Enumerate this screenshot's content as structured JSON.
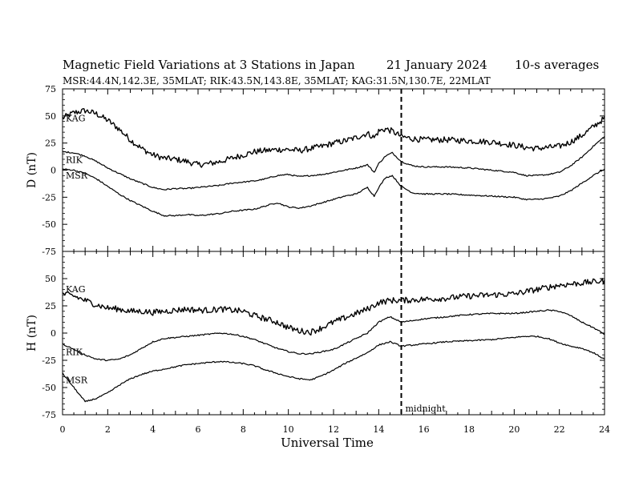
{
  "header": {
    "title": "Magnetic Field Variations at 3 Stations in Japan",
    "date": "21 January 2024",
    "averaging": "10-s averages",
    "stations": "MSR:44.4N,142.3E, 35MLAT;  RIK:43.5N,143.8E, 35MLAT;  KAG:31.5N,130.7E, 22MLAT"
  },
  "chart_data": [
    {
      "type": "line",
      "panel": "D",
      "ylabel": "D (nT)",
      "xlabel": "Universal Time",
      "xlim": [
        0,
        24
      ],
      "ylim": [
        -75,
        75
      ],
      "yticks": [
        75,
        50,
        25,
        0,
        -25,
        -50,
        -75
      ],
      "xticks": [
        0,
        2,
        4,
        6,
        8,
        10,
        12,
        14,
        16,
        18,
        20,
        22,
        24
      ],
      "x": [
        0,
        0.5,
        1,
        1.5,
        2,
        2.5,
        3,
        3.5,
        4,
        4.5,
        5,
        5.5,
        6,
        6.5,
        7,
        7.5,
        8,
        8.5,
        9,
        9.5,
        10,
        10.5,
        11,
        11.5,
        12,
        12.5,
        13,
        13.5,
        13.8,
        14,
        14.3,
        14.6,
        15,
        15.5,
        16,
        17,
        18,
        19,
        20,
        20.5,
        21,
        21.5,
        22,
        22.5,
        23,
        23.5,
        24
      ],
      "series": [
        {
          "name": "KAG",
          "values": [
            48,
            53,
            55,
            52,
            46,
            38,
            28,
            20,
            14,
            11,
            10,
            8,
            5,
            6,
            8,
            11,
            14,
            17,
            18,
            19,
            19,
            18,
            20,
            22,
            25,
            27,
            30,
            34,
            30,
            36,
            38,
            36,
            31,
            29,
            28,
            28,
            27,
            26,
            23,
            21,
            20,
            21,
            22,
            26,
            32,
            40,
            48
          ]
        },
        {
          "name": "RIK",
          "values": [
            17,
            16,
            13,
            8,
            2,
            -3,
            -8,
            -12,
            -16,
            -18,
            -17,
            -17,
            -16,
            -15,
            -14,
            -12,
            -11,
            -10,
            -8,
            -5,
            -4,
            -6,
            -5,
            -4,
            -2,
            0,
            2,
            5,
            -2,
            6,
            13,
            16,
            8,
            4,
            3,
            3,
            2,
            0,
            -2,
            -5,
            -5,
            -4,
            -2,
            4,
            12,
            22,
            31
          ]
        },
        {
          "name": "MSR",
          "values": [
            1,
            0,
            -3,
            -8,
            -15,
            -22,
            -28,
            -33,
            -38,
            -42,
            -42,
            -41,
            -42,
            -41,
            -40,
            -38,
            -37,
            -36,
            -33,
            -30,
            -34,
            -35,
            -33,
            -30,
            -27,
            -24,
            -22,
            -16,
            -24,
            -16,
            -7,
            -5,
            -15,
            -21,
            -22,
            -22,
            -23,
            -24,
            -25,
            -27,
            -27,
            -26,
            -24,
            -19,
            -12,
            -5,
            1
          ]
        }
      ]
    },
    {
      "type": "line",
      "panel": "H",
      "ylabel": "H (nT)",
      "xlabel": "Universal Time",
      "xlim": [
        0,
        24
      ],
      "ylim": [
        -75,
        75
      ],
      "yticks": [
        75,
        50,
        25,
        0,
        -25,
        -50,
        -75
      ],
      "xticks": [
        0,
        2,
        4,
        6,
        8,
        10,
        12,
        14,
        16,
        18,
        20,
        22,
        24
      ],
      "annotation": {
        "x": 15,
        "label": "midnight"
      },
      "x": [
        0,
        0.5,
        1,
        1.5,
        2,
        2.5,
        3,
        3.5,
        4,
        4.5,
        5,
        5.5,
        6,
        6.5,
        7,
        7.5,
        8,
        8.5,
        9,
        9.5,
        10,
        10.5,
        11,
        11.5,
        12,
        12.5,
        13,
        13.5,
        14,
        14.5,
        15,
        16,
        17,
        18,
        19,
        20,
        20.5,
        21,
        21.5,
        22,
        22.5,
        23,
        23.5,
        24
      ],
      "series": [
        {
          "name": "KAG",
          "values": [
            36,
            34,
            30,
            26,
            23,
            22,
            20,
            20,
            19,
            20,
            21,
            22,
            21,
            21,
            22,
            21,
            20,
            16,
            13,
            10,
            5,
            2,
            1,
            5,
            10,
            14,
            18,
            22,
            28,
            30,
            30,
            31,
            32,
            34,
            35,
            36,
            38,
            40,
            42,
            44,
            45,
            46,
            47,
            48
          ]
        },
        {
          "name": "RIK",
          "values": [
            -10,
            -15,
            -20,
            -24,
            -25,
            -24,
            -20,
            -14,
            -8,
            -5,
            -4,
            -3,
            -2,
            -1,
            0,
            -1,
            -3,
            -6,
            -10,
            -14,
            -17,
            -19,
            -19,
            -17,
            -15,
            -10,
            -5,
            0,
            10,
            15,
            10,
            13,
            15,
            17,
            18,
            18,
            19,
            20,
            21,
            20,
            16,
            10,
            5,
            -1
          ]
        },
        {
          "name": "MSR",
          "values": [
            -37,
            -50,
            -63,
            -60,
            -55,
            -48,
            -42,
            -38,
            -35,
            -33,
            -31,
            -29,
            -28,
            -27,
            -26,
            -27,
            -28,
            -30,
            -34,
            -37,
            -40,
            -42,
            -43,
            -39,
            -34,
            -28,
            -23,
            -18,
            -11,
            -8,
            -12,
            -10,
            -8,
            -7,
            -6,
            -4,
            -3,
            -3,
            -5,
            -9,
            -12,
            -14,
            -18,
            -24
          ]
        }
      ]
    }
  ]
}
